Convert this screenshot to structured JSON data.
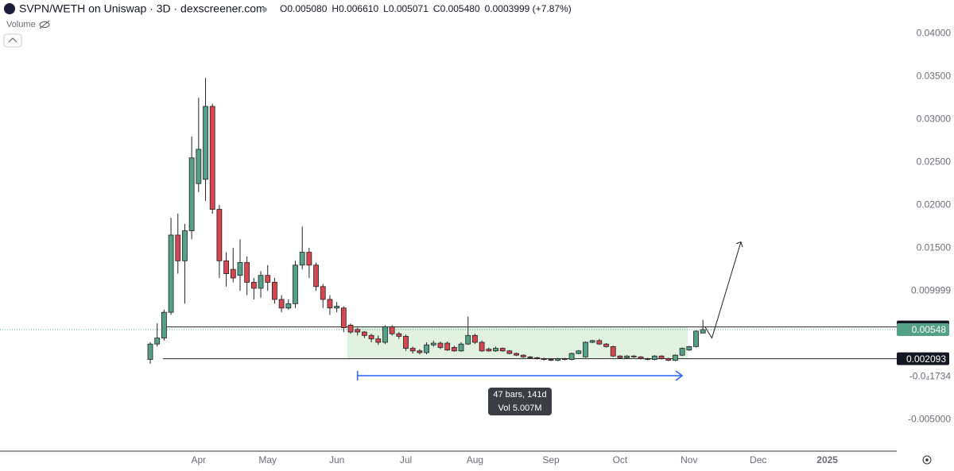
{
  "chart_data": {
    "type": "candlestick",
    "title": "SVPN/WETH on Uniswap · 3D · dexscreener.com",
    "ohlc": [
      {
        "label": "O",
        "value": "0.005080"
      },
      {
        "label": "H",
        "value": "0.006610"
      },
      {
        "label": "L",
        "value": "0.005071"
      },
      {
        "label": "C",
        "value": "0.005480"
      }
    ],
    "change": "0.0003999 (+7.87%)",
    "volume_label": "Volume",
    "up_color": "#55a088",
    "down_color": "#d6474f",
    "open": [
      0.002,
      0.0038,
      0.0045,
      0.0075,
      0.0165,
      0.0135,
      0.017,
      0.0225,
      0.023,
      0.0315,
      0.0195,
      0.0135,
      0.0125,
      0.0118,
      0.0133,
      0.011,
      0.0103,
      0.0118,
      0.011,
      0.009,
      0.008,
      0.0085,
      0.013,
      0.0145,
      0.013,
      0.0105,
      0.009,
      0.008,
      0.008,
      0.006,
      0.0055,
      0.0052,
      0.0048,
      0.0044,
      0.004,
      0.0058,
      0.005,
      0.0047,
      0.0033,
      0.003,
      0.0028,
      0.0037,
      0.0039,
      0.0039,
      0.0034,
      0.003,
      0.0038,
      0.0048,
      0.004,
      0.0032,
      0.003,
      0.0033,
      0.003,
      0.0027,
      0.0025,
      0.0023,
      0.0022,
      0.0021,
      0.002,
      0.0019,
      0.0021,
      0.002,
      0.0027,
      0.0023,
      0.004,
      0.0042,
      0.0038,
      0.0035,
      0.0024,
      0.0022,
      0.0024,
      0.0023,
      0.0021,
      0.002,
      0.0024,
      0.0021,
      0.0019,
      0.0025,
      0.0031,
      0.0035,
      0.00508
    ],
    "high": [
      0.004,
      0.0062,
      0.0078,
      0.0185,
      0.019,
      0.0178,
      0.028,
      0.0325,
      0.0348,
      0.0318,
      0.02,
      0.0145,
      0.015,
      0.016,
      0.014,
      0.0115,
      0.0123,
      0.013,
      0.0115,
      0.0095,
      0.009,
      0.0135,
      0.0175,
      0.015,
      0.0133,
      0.0108,
      0.0095,
      0.0087,
      0.0082,
      0.0062,
      0.0057,
      0.0053,
      0.005,
      0.0048,
      0.006,
      0.006,
      0.0052,
      0.0049,
      0.0035,
      0.0032,
      0.004,
      0.0042,
      0.0041,
      0.0041,
      0.0036,
      0.004,
      0.007,
      0.005,
      0.0042,
      0.0034,
      0.0035,
      0.0034,
      0.0031,
      0.0028,
      0.0026,
      0.0024,
      0.0023,
      0.0022,
      0.0021,
      0.0022,
      0.0022,
      0.0028,
      0.0031,
      0.0041,
      0.0043,
      0.0044,
      0.0039,
      0.0036,
      0.0025,
      0.0025,
      0.0025,
      0.0024,
      0.0022,
      0.0025,
      0.0025,
      0.0022,
      0.0026,
      0.0034,
      0.0036,
      0.0054,
      0.00661
    ],
    "low": [
      0.0015,
      0.0035,
      0.0042,
      0.0072,
      0.012,
      0.0085,
      0.016,
      0.0215,
      0.0205,
      0.019,
      0.0115,
      0.0105,
      0.011,
      0.01,
      0.0095,
      0.009,
      0.0092,
      0.01,
      0.0085,
      0.0075,
      0.0078,
      0.008,
      0.0125,
      0.0115,
      0.01,
      0.008,
      0.0072,
      0.0075,
      0.0052,
      0.005,
      0.0048,
      0.0045,
      0.004,
      0.0037,
      0.0038,
      0.0048,
      0.0044,
      0.003,
      0.0027,
      0.0026,
      0.0026,
      0.0035,
      0.0032,
      0.003,
      0.0029,
      0.0029,
      0.0037,
      0.0038,
      0.0029,
      0.0029,
      0.0029,
      0.0029,
      0.0026,
      0.0024,
      0.0022,
      0.0021,
      0.002,
      0.0019,
      0.0018,
      0.0018,
      0.0019,
      0.0019,
      0.0026,
      0.0022,
      0.0039,
      0.0037,
      0.0034,
      0.0023,
      0.0021,
      0.0021,
      0.0022,
      0.002,
      0.0019,
      0.0019,
      0.002,
      0.0018,
      0.0018,
      0.0024,
      0.003,
      0.0034,
      0.005071
    ],
    "close": [
      0.0038,
      0.0045,
      0.0075,
      0.0165,
      0.0135,
      0.017,
      0.0255,
      0.0265,
      0.0315,
      0.0195,
      0.0135,
      0.012,
      0.0115,
      0.0133,
      0.011,
      0.0103,
      0.0118,
      0.011,
      0.009,
      0.008,
      0.0085,
      0.013,
      0.0145,
      0.013,
      0.0105,
      0.009,
      0.008,
      0.0082,
      0.0057,
      0.0052,
      0.0052,
      0.0048,
      0.0044,
      0.004,
      0.0058,
      0.005,
      0.0047,
      0.0033,
      0.003,
      0.0028,
      0.0037,
      0.0039,
      0.0034,
      0.0031,
      0.003,
      0.0038,
      0.0048,
      0.004,
      0.003,
      0.003,
      0.0033,
      0.003,
      0.0027,
      0.0025,
      0.0023,
      0.0022,
      0.0021,
      0.002,
      0.0019,
      0.0021,
      0.002,
      0.0027,
      0.003,
      0.004,
      0.0042,
      0.0038,
      0.0035,
      0.0024,
      0.0022,
      0.0024,
      0.0023,
      0.0021,
      0.002,
      0.0024,
      0.0021,
      0.0019,
      0.0025,
      0.0033,
      0.0035,
      0.0053,
      0.00548
    ],
    "ylim": [
      -0.0085,
      0.0439
    ],
    "yticks": [
      {
        "value": 0.04,
        "label": "0.04000"
      },
      {
        "value": 0.035,
        "label": "0.03500"
      },
      {
        "value": 0.03,
        "label": "0.03000"
      },
      {
        "value": 0.025,
        "label": "0.02500"
      },
      {
        "value": 0.02,
        "label": "0.02000"
      },
      {
        "value": 0.015,
        "label": "0.01500"
      },
      0.009999,
      {
        "value": -1.734e-05,
        "label": "-0.0₄1734"
      },
      {
        "value": -0.005,
        "label": "-0.005000"
      }
    ],
    "xticks": [
      {
        "value": 7,
        "label": "Apr"
      },
      {
        "value": 17,
        "label": "May"
      },
      {
        "value": 27,
        "label": "Jun"
      },
      {
        "value": 37,
        "label": "Jul"
      },
      {
        "value": 47,
        "label": "Aug"
      },
      {
        "value": 58,
        "label": "Sep"
      },
      {
        "value": 68,
        "label": "Oct"
      },
      {
        "value": 78,
        "label": "Nov"
      },
      {
        "value": 88,
        "label": "Dec"
      },
      {
        "value": 98,
        "label": "2025"
      }
    ],
    "price_lines": [
      0.005796,
      0.002093
    ],
    "last_price": 0.00548,
    "measure": {
      "bars": "47 bars, 141d",
      "volume": "Vol 5.007M"
    }
  }
}
